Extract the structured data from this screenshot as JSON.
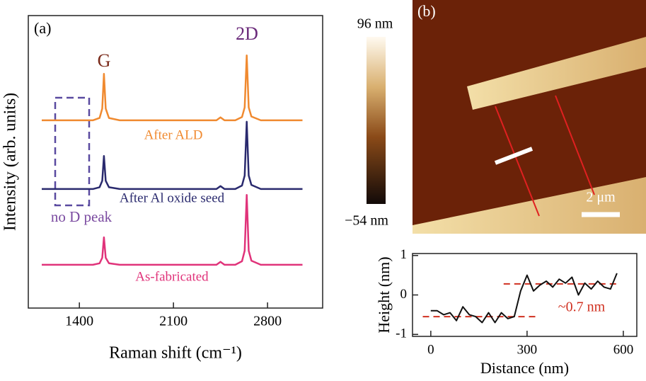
{
  "chart_data": [
    {
      "type": "line",
      "panel_label": "(a)",
      "x_label": "Raman shift (cm⁻¹)",
      "y_label": "Intensity (arb. units)",
      "xlim": [
        1020,
        3210
      ],
      "xticks": [
        1400,
        2100,
        2800
      ],
      "ylim": [
        0,
        100
      ],
      "x": [
        1120,
        1200,
        1300,
        1400,
        1500,
        1550,
        1570,
        1583,
        1596,
        1620,
        1700,
        1900,
        2100,
        2300,
        2420,
        2450,
        2480,
        2560,
        2610,
        2630,
        2645,
        2660,
        2680,
        2750,
        2900,
        3060
      ],
      "series": [
        {
          "name": "After ALD",
          "color": "#f08a30",
          "values": [
            64.2,
            64.2,
            64.2,
            64.2,
            64.2,
            65.0,
            68.2,
            80.1,
            68.2,
            65.0,
            64.2,
            64.2,
            64.2,
            64.2,
            64.2,
            65.2,
            64.2,
            64.2,
            65.3,
            68.6,
            86.4,
            68.6,
            65.5,
            64.2,
            64.2,
            64.2
          ]
        },
        {
          "name": "After Al oxide seed",
          "color": "#2a2a6e",
          "values": [
            40.7,
            40.7,
            40.7,
            40.7,
            40.7,
            41.3,
            43.5,
            52.0,
            43.5,
            41.3,
            40.7,
            40.7,
            40.7,
            40.7,
            40.7,
            41.7,
            40.7,
            40.7,
            41.9,
            45.3,
            63.7,
            45.3,
            42.1,
            40.7,
            40.7,
            40.7
          ]
        },
        {
          "name": "As-fabricated",
          "color": "#e0337a",
          "values": [
            14.8,
            14.8,
            14.8,
            14.8,
            14.8,
            15.3,
            17.2,
            24.2,
            17.2,
            15.3,
            14.8,
            14.8,
            14.8,
            14.8,
            14.8,
            15.8,
            14.8,
            14.8,
            16.0,
            19.6,
            38.7,
            19.6,
            16.2,
            14.8,
            14.8,
            14.8
          ]
        }
      ],
      "annotations": [
        "G",
        "2D",
        "no D peak"
      ]
    },
    {
      "type": "image",
      "panel_label": "(b)",
      "colorbar_labels": [
        "96 nm",
        "−54 nm"
      ],
      "scale_bar": "2 μm"
    },
    {
      "type": "line",
      "x_label": "Distance (nm)",
      "y_label": "Height (nm)",
      "xlim": [
        -57,
        642
      ],
      "xticks": [
        0,
        300,
        600
      ],
      "ylim": [
        -1.05,
        1.05
      ],
      "yticks": [
        -1,
        0,
        1
      ],
      "x": [
        0,
        20,
        40,
        60,
        80,
        100,
        120,
        140,
        160,
        180,
        200,
        220,
        240,
        260,
        280,
        300,
        320,
        340,
        360,
        380,
        400,
        420,
        440,
        460,
        480,
        500,
        520,
        540,
        560,
        580
      ],
      "series": [
        {
          "name": null,
          "color": "#111111",
          "values": [
            -0.4,
            -0.4,
            -0.5,
            -0.45,
            -0.65,
            -0.3,
            -0.5,
            -0.55,
            -0.7,
            -0.45,
            -0.7,
            -0.45,
            -0.6,
            -0.55,
            0.1,
            0.5,
            0.1,
            0.25,
            0.35,
            0.2,
            0.4,
            0.3,
            0.45,
            0.0,
            0.3,
            0.15,
            0.35,
            0.2,
            0.15,
            0.55
          ]
        }
      ],
      "reference_lines": [
        {
          "y": -0.55,
          "x": [
            -25,
            330
          ],
          "color": "#d03020"
        },
        {
          "y": 0.28,
          "x": [
            227,
            580
          ],
          "color": "#d03020"
        }
      ],
      "annotations": [
        "~0.7 nm"
      ]
    }
  ]
}
